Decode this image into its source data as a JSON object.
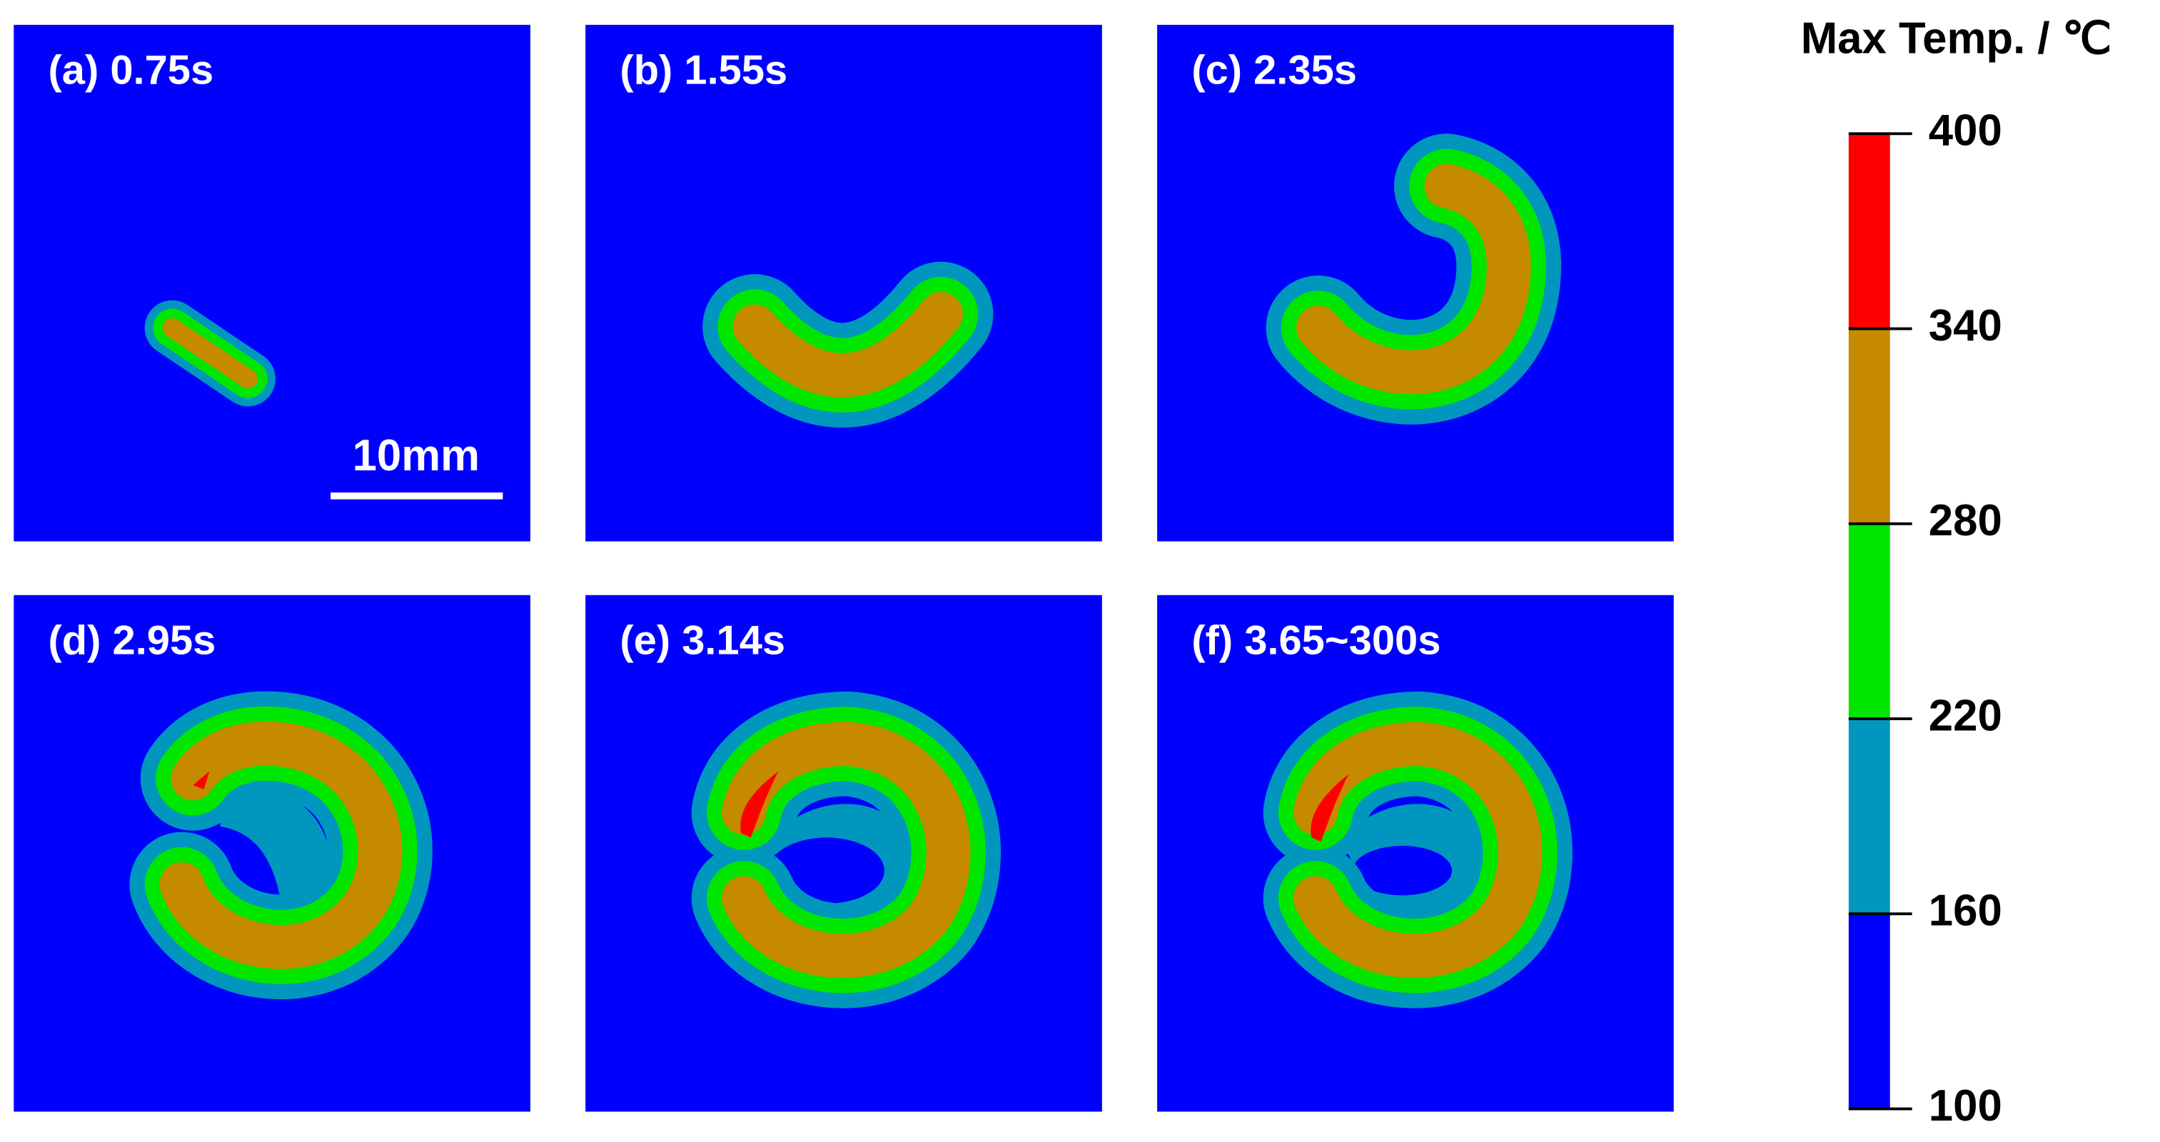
{
  "chart_data": {
    "type": "contour",
    "panels": [
      {
        "label": "(a) 0.75s"
      },
      {
        "label": "(b) 1.55s"
      },
      {
        "label": "(c) 2.35s"
      },
      {
        "label": "(d) 2.95s"
      },
      {
        "label": "(e) 3.14s"
      },
      {
        "label": "(f) 3.65~300s"
      }
    ],
    "scale_bar": "10mm",
    "colorbar": {
      "title": "Max Temp. / ℃",
      "ylim": [
        100,
        400
      ],
      "yticks": [
        100,
        160,
        220,
        280,
        340,
        400
      ],
      "colors": [
        "#0000ff",
        "#0096bd",
        "#00e600",
        "#c68a00",
        "#ff0000"
      ]
    }
  }
}
